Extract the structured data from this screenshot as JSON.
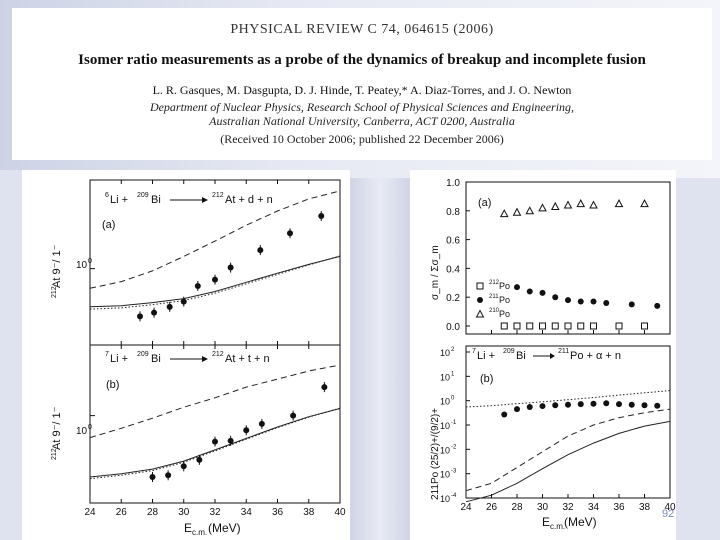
{
  "header": {
    "journal": "PHYSICAL REVIEW C 74, 064615 (2006)",
    "title": "Isomer ratio measurements as a probe of the dynamics of breakup and incomplete fusion",
    "authors": "L. R. Gasques, M. Dasgupta, D. J. Hinde, T. Peatey,* A. Diaz-Torres, and J. O. Newton",
    "affiliation_line1": "Department of Nuclear Physics, Research School of Physical Sciences and Engineering,",
    "affiliation_line2": "Australian National University, Canberra, ACT 0200, Australia",
    "received": "(Received 10 October 2006; published 22 December 2006)"
  },
  "page_number": "92",
  "chart_data": [
    {
      "id": "left-a",
      "type": "scatter",
      "panel_label": "(a)",
      "reaction": {
        "projectile_mass": "6",
        "projectile": "Li +",
        "target_mass": "209",
        "target": "Bi",
        "arrow": "⟶",
        "product_mass": "212",
        "product": "At + d + n"
      },
      "ylabel": "212At 9-/1-",
      "ylabel_sup": "212",
      "ylabel_main": "At  9⁻/ 1⁻",
      "ytick": "10",
      "ytick_exp": "0",
      "x": [
        27.2,
        28.1,
        29.1,
        30.0,
        30.9,
        32.0,
        33.0,
        34.9,
        36.8,
        38.8
      ],
      "y": [
        0.42,
        0.45,
        0.5,
        0.55,
        0.73,
        0.82,
        1.02,
        1.4,
        1.9,
        2.6
      ],
      "theory_dashed": {
        "x": [
          24,
          26,
          28,
          30,
          32,
          34,
          36,
          38,
          40
        ],
        "y": [
          0.7,
          0.79,
          0.96,
          1.25,
          1.65,
          2.2,
          2.85,
          3.55,
          4.1
        ]
      },
      "theory_solid": {
        "x": [
          24,
          26,
          28,
          30,
          32,
          34,
          36,
          38,
          40
        ],
        "y": [
          0.5,
          0.51,
          0.54,
          0.58,
          0.66,
          0.78,
          0.92,
          1.08,
          1.25
        ]
      },
      "theory_dotted": {
        "x": [
          24,
          26,
          28,
          30,
          32,
          34,
          36,
          38,
          40
        ],
        "y": [
          0.48,
          0.49,
          0.52,
          0.56,
          0.64,
          0.76,
          0.9,
          1.07,
          1.26
        ]
      }
    },
    {
      "id": "left-b",
      "type": "scatter",
      "panel_label": "(b)",
      "reaction": {
        "projectile_mass": "7",
        "projectile": "Li +",
        "target_mass": "209",
        "target": "Bi",
        "arrow": "⟶",
        "product_mass": "212",
        "product": "At + t + n"
      },
      "ylabel": "212At 9-/1-",
      "ylabel_sup": "212",
      "ylabel_main": "At  9⁻/ 1⁻",
      "ytick": "10",
      "ytick_exp": "0",
      "x": [
        28.0,
        29.0,
        30.0,
        31.0,
        32.0,
        33.0,
        34.0,
        35.0,
        37.0,
        39.0
      ],
      "y": [
        0.3,
        0.31,
        0.37,
        0.42,
        0.6,
        0.61,
        0.75,
        0.85,
        1.0,
        1.75
      ],
      "theory_dashed": {
        "x": [
          24,
          26,
          28,
          30,
          32,
          34,
          36,
          38,
          40
        ],
        "y": [
          0.65,
          0.78,
          0.95,
          1.18,
          1.42,
          1.75,
          2.05,
          2.4,
          2.7
        ]
      },
      "theory_solid": {
        "x": [
          24,
          26,
          28,
          30,
          32,
          34,
          36,
          38,
          40
        ],
        "y": [
          0.3,
          0.32,
          0.35,
          0.41,
          0.51,
          0.64,
          0.8,
          0.98,
          1.15
        ]
      },
      "theory_dotted": {
        "x": [
          24,
          26,
          28,
          30,
          32,
          34,
          36,
          38,
          40
        ],
        "y": [
          0.29,
          0.31,
          0.34,
          0.4,
          0.5,
          0.63,
          0.79,
          0.97,
          1.16
        ]
      },
      "xlabel_main": "E",
      "xlabel_sub": "c.m.",
      "xlabel_unit": " (MeV)",
      "xticks": [
        "24",
        "26",
        "28",
        "30",
        "32",
        "34",
        "36",
        "38",
        "40"
      ],
      "xlim": [
        24,
        40
      ]
    },
    {
      "id": "right-a",
      "type": "scatter",
      "panel_label": "(a)",
      "ylabel": "σ_m / Σσ_m",
      "yticks": [
        "0.0",
        "0.2",
        "0.4",
        "0.6",
        "0.8",
        "1.0"
      ],
      "ylim": [
        0,
        1
      ],
      "legend": [
        {
          "sym": "square",
          "mass": "212",
          "name": "Po"
        },
        {
          "sym": "circle",
          "mass": "211",
          "name": "Po"
        },
        {
          "sym": "triangle",
          "mass": "210",
          "name": "Po"
        }
      ],
      "triangles": {
        "x": [
          27,
          28,
          29,
          30,
          31,
          32,
          33,
          34,
          36,
          38
        ],
        "y": [
          0.78,
          0.79,
          0.8,
          0.82,
          0.83,
          0.84,
          0.85,
          0.84,
          0.85,
          0.85
        ]
      },
      "circles": {
        "x": [
          28,
          29,
          30,
          31,
          32,
          33,
          34,
          35,
          37,
          39
        ],
        "y": [
          0.27,
          0.24,
          0.23,
          0.2,
          0.18,
          0.17,
          0.17,
          0.16,
          0.15,
          0.14
        ]
      },
      "squares": {
        "x": [
          27,
          28,
          29,
          30,
          31,
          32,
          33,
          34,
          36,
          38
        ],
        "y": [
          0.0,
          0.0,
          0.0,
          0.0,
          0.0,
          0.0,
          0.0,
          0.0,
          0.0,
          0.0
        ]
      }
    },
    {
      "id": "right-b",
      "type": "scatter",
      "panel_label": "(b)",
      "reaction": {
        "projectile_mass": "7",
        "projectile": "Li +",
        "target_mass": "209",
        "target": "Bi",
        "arrow": "⟶",
        "product_mass": "211",
        "product": "Po + α + n"
      },
      "ylabel": "211Po (25/2)+/(9/2)+",
      "yticks": [
        {
          "base": "10",
          "exp": "2"
        },
        {
          "base": "10",
          "exp": "1"
        },
        {
          "base": "10",
          "exp": "0"
        },
        {
          "base": "10",
          "exp": "-1"
        },
        {
          "base": "10",
          "exp": "-2"
        },
        {
          "base": "10",
          "exp": "-3"
        },
        {
          "base": "10",
          "exp": "-4"
        }
      ],
      "ylim_log10": [
        -4,
        2
      ],
      "x": [
        27,
        28,
        29,
        30,
        31,
        32,
        33,
        34,
        35,
        36,
        37,
        38,
        39
      ],
      "y": [
        0.27,
        0.45,
        0.55,
        0.6,
        0.65,
        0.68,
        0.72,
        0.75,
        0.78,
        0.72,
        0.68,
        0.65,
        0.62
      ],
      "theory_dashed": {
        "x": [
          24,
          26,
          28,
          30,
          32,
          34,
          36,
          38,
          40
        ],
        "y": [
          0.0002,
          0.0004,
          0.0018,
          0.008,
          0.035,
          0.1,
          0.2,
          0.32,
          0.45
        ]
      },
      "theory_solid": {
        "x": [
          24,
          26,
          28,
          30,
          32,
          34,
          36,
          38,
          40
        ],
        "y": [
          7e-05,
          0.00013,
          0.0004,
          0.0016,
          0.006,
          0.018,
          0.045,
          0.09,
          0.14
        ]
      },
      "theory_dotted": {
        "x": [
          24,
          26,
          28,
          30,
          32,
          34,
          36,
          38,
          40
        ],
        "y": [
          0.55,
          0.62,
          0.75,
          0.9,
          1.1,
          1.35,
          1.7,
          2.1,
          2.6
        ]
      },
      "xlabel_main": "E",
      "xlabel_sub": "c.m.",
      "xlabel_unit": " (MeV)",
      "xticks": [
        "24",
        "26",
        "28",
        "30",
        "32",
        "34",
        "36",
        "38",
        "40"
      ],
      "xlim": [
        24,
        40
      ]
    }
  ]
}
